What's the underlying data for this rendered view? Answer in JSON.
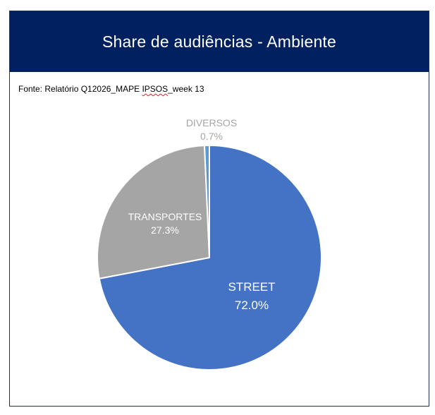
{
  "header": {
    "title": "Share de audiências - Ambiente"
  },
  "source": {
    "prefix": "Fonte: Relatório Q12026_MAPE ",
    "underlined": "IPSOS",
    "suffix": "_week 13"
  },
  "chart_data": {
    "type": "pie",
    "title": "Share de audiências - Ambiente",
    "slices": [
      {
        "label": "STREET",
        "value": 72.0,
        "value_label": "72.0%",
        "color": "#4472c4",
        "label_color": "#ffffff"
      },
      {
        "label": "TRANSPORTES",
        "value": 27.3,
        "value_label": "27.3%",
        "color": "#a5a5a5",
        "label_color": "#ffffff"
      },
      {
        "label": "DIVERSOS",
        "value": 0.7,
        "value_label": "0.7%",
        "color": "#5b9bd5",
        "label_color": "#a5a5a5"
      }
    ],
    "start_angle_deg": 0,
    "direction": "clockwise"
  }
}
